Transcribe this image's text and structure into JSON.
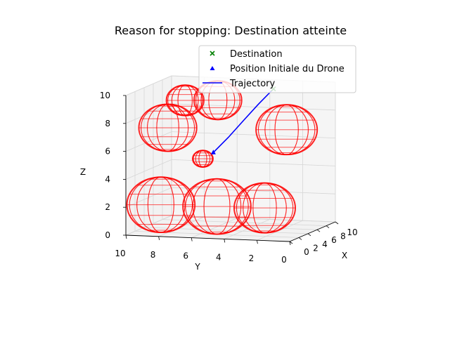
{
  "chart_data": {
    "type": "3d-trajectory",
    "title": "Reason for stopping: Destination atteinte",
    "xlabel": "X",
    "ylabel": "Y",
    "zlabel": "Z",
    "xlim": [
      0,
      10
    ],
    "ylim": [
      0,
      10
    ],
    "zlim": [
      0,
      10
    ],
    "x_ticks": [
      "0",
      "2",
      "4",
      "6",
      "8",
      "10"
    ],
    "y_ticks": [
      "10",
      "8",
      "6",
      "4",
      "2",
      "0"
    ],
    "z_ticks": [
      "0",
      "2",
      "4",
      "6",
      "8",
      "10"
    ],
    "grid": true,
    "legend_position": "top-right",
    "legend": [
      {
        "label": "Destination",
        "marker": "x",
        "color": "#008000"
      },
      {
        "label": "Position Initiale du Drone",
        "marker": "triangle",
        "color": "#0000ff"
      },
      {
        "label": "Trajectory",
        "marker": "line",
        "color": "#0000ff"
      }
    ],
    "destination": {
      "x": 9,
      "y": 3.5,
      "z": 9.5
    },
    "start_position": {
      "x": 3,
      "y": 5.5,
      "z": 5.7
    },
    "trajectory": [
      [
        3,
        5.5,
        5.7
      ],
      [
        4.5,
        5,
        6.6
      ],
      [
        6,
        4.5,
        7.6
      ],
      [
        7.5,
        4,
        8.6
      ],
      [
        9,
        3.5,
        9.5
      ]
    ],
    "obstacles": [
      {
        "x": 4.0,
        "y": 7.5,
        "z": 9.2,
        "r": 1.1
      },
      {
        "x": 4.0,
        "y": 5.5,
        "z": 9.3,
        "r": 1.4
      },
      {
        "x": 2.0,
        "y": 8.0,
        "z": 7.5,
        "r": 1.7
      },
      {
        "x": 6.5,
        "y": 2.0,
        "z": 7.0,
        "r": 1.8
      },
      {
        "x": 2.5,
        "y": 6.0,
        "z": 5.3,
        "r": 0.6
      },
      {
        "x": 0.5,
        "y": 8.0,
        "z": 2.2,
        "r": 2.0
      },
      {
        "x": 2.0,
        "y": 5.0,
        "z": 2.0,
        "r": 2.0
      },
      {
        "x": 3.5,
        "y": 2.5,
        "z": 1.8,
        "r": 1.8
      }
    ],
    "obstacle_color": "#ff0000",
    "trajectory_color": "#0000ff",
    "destination_color": "#008000"
  }
}
